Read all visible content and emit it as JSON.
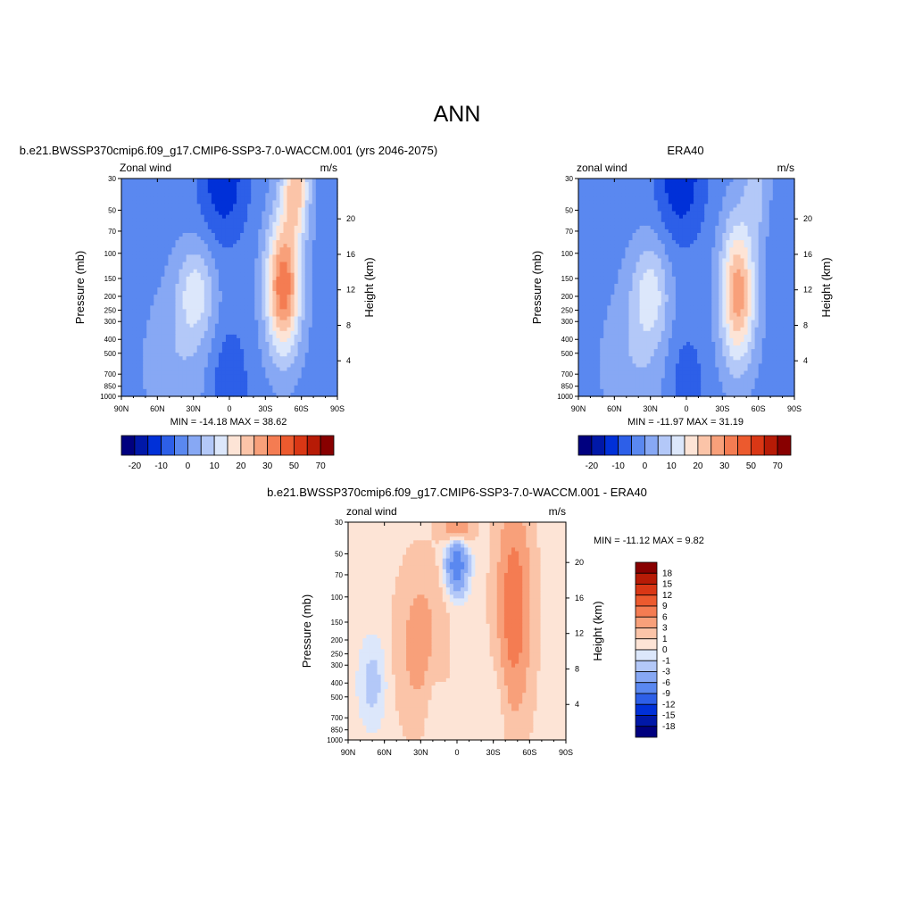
{
  "figure": {
    "title": "ANN"
  },
  "ramp": [
    "#00007f",
    "#0018a8",
    "#0030d8",
    "#2d5fe8",
    "#5a88f0",
    "#87a8f4",
    "#b3c8f8",
    "#dce7fb",
    "#fde4d6",
    "#fbc4a8",
    "#f8a07a",
    "#f47c52",
    "#ec5a2e",
    "#d93715",
    "#b71b06",
    "#880000"
  ],
  "chart_data": [
    {
      "type": "heatmap",
      "title": "b.e21.BWSSP370cmip6.f09_g17.CMIP6-SSP3-7.0-WACCM.001 (yrs 2046-2075)",
      "left_label": "Zonal wind",
      "right_label": "m/s",
      "xlabel": "",
      "ylabel": "Pressure (mb)",
      "y2label": "Height (km)",
      "x_ticks": [
        "90N",
        "60N",
        "30N",
        "0",
        "30S",
        "60S",
        "90S"
      ],
      "y_ticks": [
        "30",
        "50",
        "70",
        "100",
        "150",
        "200",
        "250",
        "300",
        "400",
        "500",
        "700",
        "850",
        "1000"
      ],
      "y2_ticks": [
        "20",
        "16",
        "12",
        "8",
        "4"
      ],
      "x_range": [
        90,
        -90
      ],
      "y_range": [
        30,
        1000
      ],
      "y_scale": "log",
      "stats": "MIN = -14.18  MAX =  38.62",
      "colorbar": {
        "orientation": "horizontal",
        "labels": [
          "-20",
          "-10",
          "0",
          "10",
          "20",
          "30",
          "50",
          "70"
        ]
      }
    },
    {
      "type": "heatmap",
      "title": "ERA40",
      "left_label": "zonal wind",
      "right_label": "m/s",
      "xlabel": "",
      "ylabel": "Pressure (mb)",
      "y2label": "Height (km)",
      "x_ticks": [
        "90N",
        "60N",
        "30N",
        "0",
        "30S",
        "60S",
        "90S"
      ],
      "y_ticks": [
        "30",
        "50",
        "70",
        "100",
        "150",
        "200",
        "250",
        "300",
        "400",
        "500",
        "700",
        "850",
        "1000"
      ],
      "y2_ticks": [
        "20",
        "16",
        "12",
        "8",
        "4"
      ],
      "x_range": [
        90,
        -90
      ],
      "y_range": [
        30,
        1000
      ],
      "y_scale": "log",
      "stats": "MIN = -11.97  MAX =  31.19",
      "colorbar": {
        "orientation": "horizontal",
        "labels": [
          "-20",
          "-10",
          "0",
          "10",
          "20",
          "30",
          "50",
          "70"
        ]
      }
    },
    {
      "type": "heatmap",
      "title": "b.e21.BWSSP370cmip6.f09_g17.CMIP6-SSP3-7.0-WACCM.001 - ERA40",
      "left_label": "zonal wind",
      "right_label": "m/s",
      "xlabel": "",
      "ylabel": "Pressure (mb)",
      "y2label": "Height (km)",
      "x_ticks": [
        "90N",
        "60N",
        "30N",
        "0",
        "30S",
        "60S",
        "90S"
      ],
      "y_ticks": [
        "30",
        "50",
        "70",
        "100",
        "150",
        "200",
        "250",
        "300",
        "400",
        "500",
        "700",
        "850",
        "1000"
      ],
      "y2_ticks": [
        "20",
        "16",
        "12",
        "8",
        "4"
      ],
      "x_range": [
        90,
        -90
      ],
      "y_range": [
        30,
        1000
      ],
      "y_scale": "log",
      "stats": "MIN = -11.12  MAX =   9.82",
      "colorbar": {
        "orientation": "vertical",
        "labels": [
          "18",
          "15",
          "12",
          "9",
          "6",
          "3",
          "1",
          "0",
          "-1",
          "-3",
          "-6",
          "-9",
          "-12",
          "-15",
          "-18"
        ]
      }
    }
  ]
}
